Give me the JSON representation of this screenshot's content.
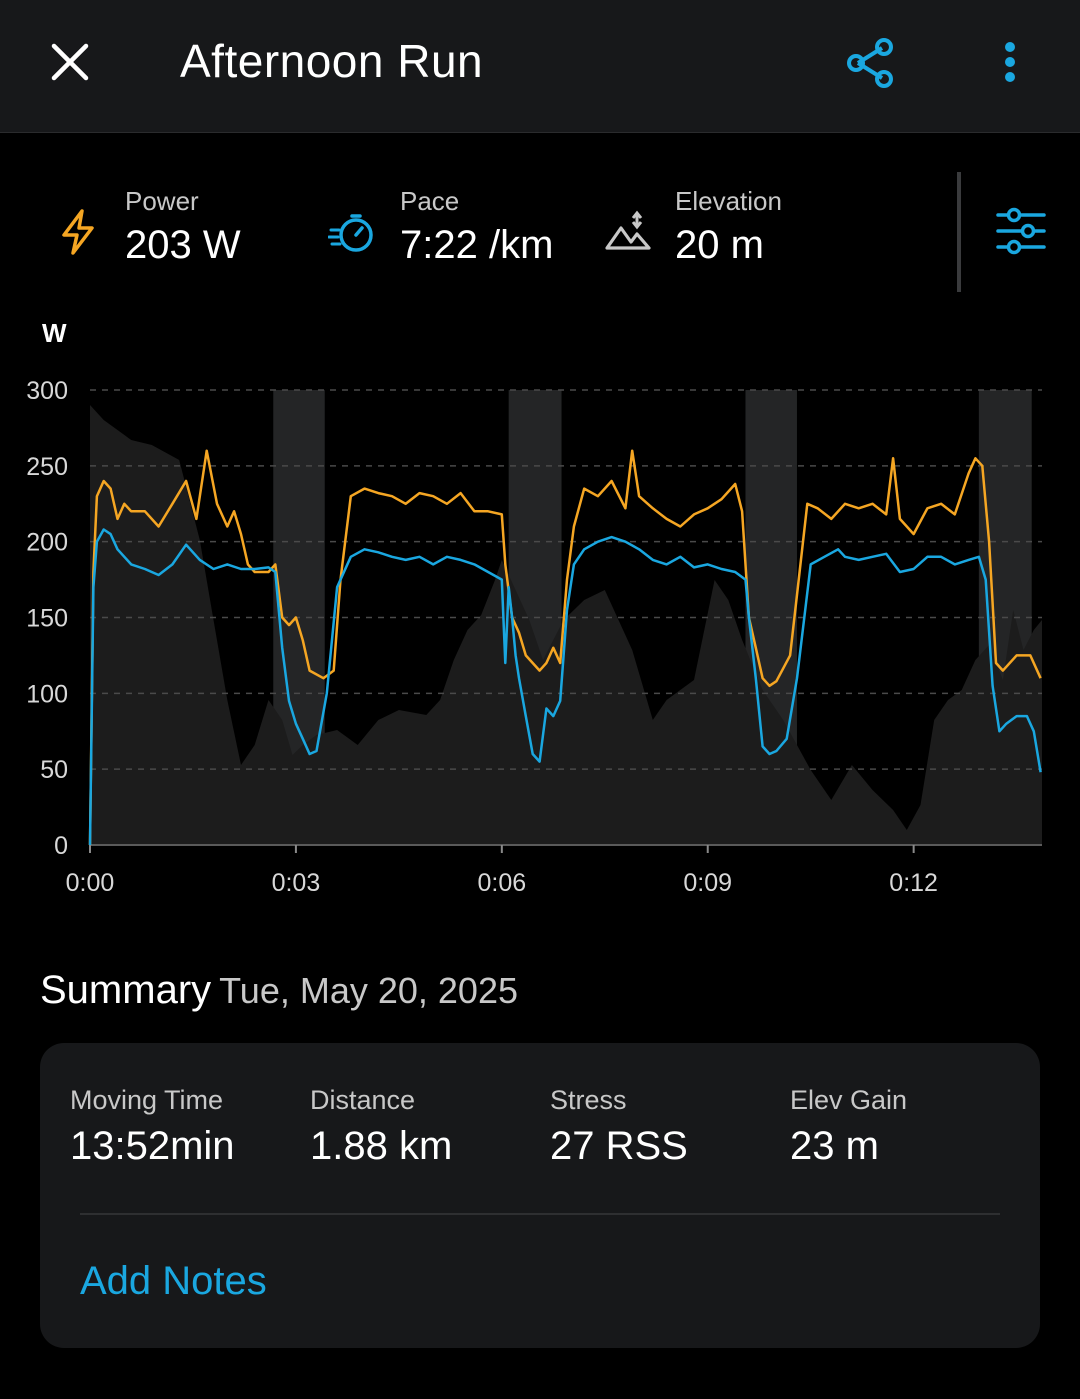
{
  "header": {
    "title": "Afternoon Run",
    "close_icon": "close-icon",
    "share_icon": "share-icon",
    "more_icon": "more-vertical-icon",
    "accent_color": "#1aa7e0"
  },
  "metrics": [
    {
      "label": "Power",
      "value": "203 W",
      "icon": "lightning-icon",
      "color": "#f5a623"
    },
    {
      "label": "Pace",
      "value": "7:22 /km",
      "icon": "stopwatch-icon",
      "color": "#1aa7e0"
    },
    {
      "label": "Elevation",
      "value": "20 m",
      "icon": "mountain-icon",
      "color": "#c8c8c8"
    }
  ],
  "chart_data": {
    "type": "line",
    "ylabel": "W",
    "ylim": [
      0,
      300
    ],
    "y_ticks": [
      "0",
      "50",
      "100",
      "150",
      "200",
      "250",
      "300"
    ],
    "x_ticks": [
      "0:00",
      "0:03",
      "0:06",
      "0:09",
      "0:12"
    ],
    "xlim": [
      0,
      13.87
    ],
    "grid": true,
    "highlight_bands": [
      [
        2.67,
        3.42
      ],
      [
        6.1,
        6.87
      ],
      [
        9.55,
        10.3
      ],
      [
        12.95,
        13.72
      ]
    ],
    "series": [
      {
        "color": "#f5a623",
        "x": [
          0,
          0.05,
          0.1,
          0.2,
          0.3,
          0.4,
          0.5,
          0.6,
          0.8,
          1.0,
          1.2,
          1.4,
          1.55,
          1.7,
          1.85,
          2.0,
          2.1,
          2.2,
          2.3,
          2.4,
          2.5,
          2.6,
          2.7,
          2.8,
          2.9,
          3.0,
          3.1,
          3.2,
          3.4,
          3.55,
          3.65,
          3.8,
          4.0,
          4.2,
          4.4,
          4.6,
          4.8,
          5.0,
          5.2,
          5.4,
          5.6,
          5.8,
          6.0,
          6.05,
          6.15,
          6.25,
          6.35,
          6.45,
          6.55,
          6.65,
          6.75,
          6.85,
          6.95,
          7.05,
          7.2,
          7.4,
          7.6,
          7.8,
          7.9,
          8.0,
          8.2,
          8.4,
          8.6,
          8.8,
          9.0,
          9.2,
          9.4,
          9.5,
          9.6,
          9.7,
          9.8,
          9.9,
          10.0,
          10.2,
          10.3,
          10.45,
          10.6,
          10.8,
          11.0,
          11.2,
          11.4,
          11.6,
          11.7,
          11.8,
          11.9,
          12.0,
          12.2,
          12.4,
          12.6,
          12.8,
          12.9,
          13.0,
          13.1,
          13.2,
          13.3,
          13.5,
          13.7,
          13.85
        ],
        "y": [
          0,
          180,
          230,
          240,
          235,
          215,
          225,
          220,
          220,
          210,
          225,
          240,
          215,
          260,
          225,
          210,
          220,
          205,
          185,
          180,
          180,
          180,
          185,
          150,
          145,
          150,
          135,
          115,
          110,
          115,
          175,
          230,
          235,
          232,
          230,
          225,
          232,
          230,
          225,
          232,
          220,
          220,
          218,
          185,
          150,
          140,
          125,
          120,
          115,
          120,
          130,
          120,
          175,
          210,
          235,
          230,
          240,
          222,
          260,
          230,
          222,
          215,
          210,
          218,
          222,
          228,
          238,
          220,
          150,
          130,
          110,
          105,
          108,
          125,
          165,
          225,
          222,
          215,
          225,
          222,
          225,
          218,
          255,
          215,
          210,
          205,
          222,
          225,
          218,
          245,
          255,
          250,
          200,
          120,
          115,
          125,
          125,
          110
        ]
      },
      {
        "color": "#1aa7e0",
        "x": [
          0,
          0.05,
          0.1,
          0.2,
          0.3,
          0.4,
          0.6,
          0.8,
          1.0,
          1.2,
          1.4,
          1.6,
          1.8,
          2.0,
          2.2,
          2.4,
          2.6,
          2.7,
          2.8,
          2.9,
          3.0,
          3.1,
          3.2,
          3.3,
          3.45,
          3.6,
          3.8,
          4.0,
          4.2,
          4.4,
          4.6,
          4.8,
          5.0,
          5.2,
          5.4,
          5.6,
          5.8,
          6.0,
          6.05,
          6.1,
          6.15,
          6.2,
          6.25,
          6.35,
          6.45,
          6.55,
          6.65,
          6.75,
          6.85,
          6.95,
          7.05,
          7.2,
          7.4,
          7.6,
          7.8,
          8.0,
          8.2,
          8.4,
          8.6,
          8.8,
          9.0,
          9.2,
          9.4,
          9.55,
          9.6,
          9.7,
          9.8,
          9.9,
          10.0,
          10.15,
          10.3,
          10.5,
          10.7,
          10.9,
          11.0,
          11.2,
          11.4,
          11.6,
          11.8,
          12.0,
          12.2,
          12.4,
          12.6,
          12.8,
          12.95,
          13.05,
          13.15,
          13.25,
          13.35,
          13.5,
          13.65,
          13.75,
          13.85
        ],
        "y": [
          0,
          170,
          200,
          208,
          205,
          195,
          185,
          182,
          178,
          185,
          198,
          188,
          182,
          185,
          182,
          182,
          183,
          180,
          130,
          95,
          80,
          70,
          60,
          62,
          100,
          170,
          190,
          195,
          193,
          190,
          188,
          190,
          185,
          190,
          188,
          185,
          180,
          175,
          120,
          170,
          150,
          125,
          110,
          85,
          60,
          55,
          90,
          85,
          95,
          155,
          185,
          195,
          200,
          203,
          200,
          195,
          188,
          185,
          190,
          183,
          185,
          182,
          180,
          175,
          150,
          110,
          65,
          60,
          62,
          70,
          110,
          185,
          190,
          195,
          190,
          188,
          190,
          192,
          180,
          182,
          190,
          190,
          185,
          188,
          190,
          175,
          105,
          75,
          80,
          85,
          85,
          75,
          48
        ]
      }
    ]
  },
  "summary": {
    "title": "Summary",
    "date": "Tue, May 20, 2025",
    "stats": [
      {
        "label": "Moving Time",
        "value": "13:52min"
      },
      {
        "label": "Distance",
        "value": "1.88 km"
      },
      {
        "label": "Stress",
        "value": "27 RSS"
      },
      {
        "label": "Elev Gain",
        "value": "23 m"
      }
    ],
    "add_notes": "Add Notes"
  }
}
